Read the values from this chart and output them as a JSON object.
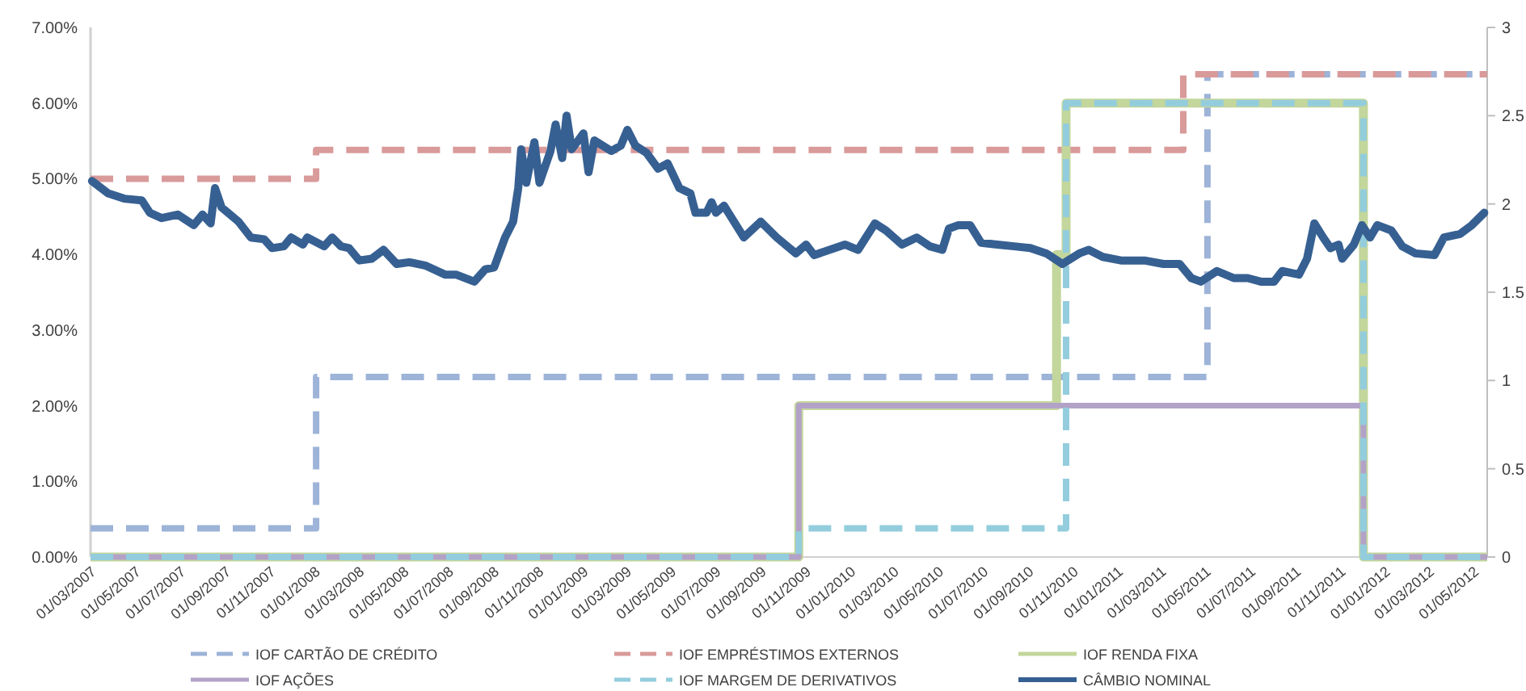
{
  "chart_data": {
    "type": "step",
    "xlim": [
      "2007-03-01",
      "2012-05-20"
    ],
    "xticks": [
      {
        "value": "2007-03-01",
        "label": "01/03/2007"
      },
      {
        "value": "2007-05-01",
        "label": "01/05/2007"
      },
      {
        "value": "2007-07-01",
        "label": "01/07/2007"
      },
      {
        "value": "2007-09-01",
        "label": "01/09/2007"
      },
      {
        "value": "2007-11-01",
        "label": "01/11/2007"
      },
      {
        "value": "2008-01-01",
        "label": "01/01/2008"
      },
      {
        "value": "2008-03-01",
        "label": "01/03/2008"
      },
      {
        "value": "2008-05-01",
        "label": "01/05/2008"
      },
      {
        "value": "2008-07-01",
        "label": "01/07/2008"
      },
      {
        "value": "2008-09-01",
        "label": "01/09/2008"
      },
      {
        "value": "2008-11-01",
        "label": "01/11/2008"
      },
      {
        "value": "2009-01-01",
        "label": "01/01/2009"
      },
      {
        "value": "2009-03-01",
        "label": "01/03/2009"
      },
      {
        "value": "2009-05-01",
        "label": "01/05/2009"
      },
      {
        "value": "2009-07-01",
        "label": "01/07/2009"
      },
      {
        "value": "2009-09-01",
        "label": "01/09/2009"
      },
      {
        "value": "2009-11-01",
        "label": "01/11/2009"
      },
      {
        "value": "2010-01-01",
        "label": "01/01/2010"
      },
      {
        "value": "2010-03-01",
        "label": "01/03/2010"
      },
      {
        "value": "2010-05-01",
        "label": "01/05/2010"
      },
      {
        "value": "2010-07-01",
        "label": "01/07/2010"
      },
      {
        "value": "2010-09-01",
        "label": "01/09/2010"
      },
      {
        "value": "2010-11-01",
        "label": "01/11/2010"
      },
      {
        "value": "2011-01-01",
        "label": "01/01/2011"
      },
      {
        "value": "2011-03-01",
        "label": "01/03/2011"
      },
      {
        "value": "2011-05-01",
        "label": "01/05/2011"
      },
      {
        "value": "2011-07-01",
        "label": "01/07/2011"
      },
      {
        "value": "2011-09-01",
        "label": "01/09/2011"
      },
      {
        "value": "2011-11-01",
        "label": "01/11/2011"
      },
      {
        "value": "2012-01-01",
        "label": "01/01/2012"
      },
      {
        "value": "2012-03-01",
        "label": "01/03/2012"
      },
      {
        "value": "2012-05-01",
        "label": "01/05/2012"
      }
    ],
    "ylim": [
      0,
      7
    ],
    "yticks": [
      {
        "value": 0,
        "label": "0.00%"
      },
      {
        "value": 1,
        "label": "1.00%"
      },
      {
        "value": 2,
        "label": "2.00%"
      },
      {
        "value": 3,
        "label": "3.00%"
      },
      {
        "value": 4,
        "label": "4.00%"
      },
      {
        "value": 5,
        "label": "5.00%"
      },
      {
        "value": 6,
        "label": "6.00%"
      },
      {
        "value": 7,
        "label": "7.00%"
      }
    ],
    "y2lim": [
      0,
      3
    ],
    "y2ticks": [
      0,
      0.5,
      1,
      1.5,
      2,
      2.5,
      3
    ],
    "grid": false,
    "legend": "bottom",
    "series": [
      {
        "name": "IOF CARTÃO DE CRÉDITO",
        "color": "#9db3d8",
        "line_style": "dashed",
        "x": [
          "2007-03-01",
          "2008-01-03",
          "2011-05-04",
          "2012-05-20"
        ],
        "values": [
          0.38,
          2.38,
          6.38,
          6.38
        ]
      },
      {
        "name": "IOF EMPRÉSTIMOS EXTERNOS",
        "color": "#d99a9a",
        "line_style": "dashed",
        "x": [
          "2007-03-01",
          "2008-01-03",
          "2011-04-01",
          "2012-05-20"
        ],
        "values": [
          5,
          5.38,
          6.38,
          6.38
        ]
      },
      {
        "name": "IOF RENDA FIXA",
        "color": "#c3d69b",
        "line_style": "solid",
        "x": [
          "2007-03-01",
          "2009-10-23",
          "2010-10-10",
          "2010-10-23",
          "2011-12-03",
          "2012-05-20"
        ],
        "values": [
          0,
          2,
          4,
          6,
          0,
          0
        ]
      },
      {
        "name": "IOF AÇÕES",
        "color": "#b3a2c7",
        "line_style": "solid",
        "x": [
          "2007-03-01",
          "2009-10-23",
          "2011-12-03",
          "2012-05-20"
        ],
        "values": [
          0,
          2,
          0,
          0
        ]
      },
      {
        "name": "IOF MARGEM DE DERIVATIVOS",
        "color": "#93cddd",
        "line_style": "dashed",
        "x": [
          "2007-03-01",
          "2009-10-23",
          "2010-10-23",
          "2011-12-03",
          "2012-05-20"
        ],
        "values": [
          0,
          0.38,
          6,
          0,
          0
        ]
      },
      {
        "name": "CÂMBIO NOMINAL",
        "type": "line",
        "axis": "y2",
        "color": "#376092",
        "line_style": "solid",
        "x": [
          "2007-03-03",
          "2007-03-25",
          "2007-04-16",
          "2007-05-10",
          "2007-05-21",
          "2007-06-06",
          "2007-06-28",
          "2007-07-20",
          "2007-08-01",
          "2007-08-12",
          "2007-08-18",
          "2007-08-27",
          "2007-09-19",
          "2007-10-06",
          "2007-10-24",
          "2007-11-04",
          "2007-11-20",
          "2007-11-30",
          "2007-12-16",
          "2007-12-22",
          "2008-01-14",
          "2008-01-25",
          "2008-02-06",
          "2008-02-17",
          "2008-03-02",
          "2008-03-19",
          "2008-04-04",
          "2008-04-22",
          "2008-05-09",
          "2008-06-01",
          "2008-06-27",
          "2008-07-12",
          "2008-08-06",
          "2008-08-21",
          "2008-09-02",
          "2008-09-17",
          "2008-09-28",
          "2008-10-05",
          "2008-10-09",
          "2008-10-16",
          "2008-10-27",
          "2008-11-03",
          "2008-11-18",
          "2008-11-25",
          "2008-12-04",
          "2008-12-10",
          "2008-12-17",
          "2009-01-02",
          "2009-01-09",
          "2009-01-17",
          "2009-02-09",
          "2009-02-22",
          "2009-03-03",
          "2009-03-14",
          "2009-03-29",
          "2009-04-14",
          "2009-04-27",
          "2009-05-13",
          "2009-05-28",
          "2009-06-04",
          "2009-06-19",
          "2009-06-26",
          "2009-07-02",
          "2009-07-13",
          "2009-07-28",
          "2009-08-09",
          "2009-09-01",
          "2009-09-23",
          "2009-10-19",
          "2009-11-02",
          "2009-11-13",
          "2009-12-25",
          "2010-01-12",
          "2010-02-04",
          "2010-02-19",
          "2010-03-13",
          "2010-04-02",
          "2010-04-20",
          "2010-05-07",
          "2010-05-16",
          "2010-05-29",
          "2010-06-14",
          "2010-06-29",
          "2010-07-21",
          "2010-08-13",
          "2010-09-04",
          "2010-09-26",
          "2010-10-18",
          "2010-11-10",
          "2010-11-23",
          "2010-12-12",
          "2011-01-06",
          "2011-02-07",
          "2011-03-05",
          "2011-03-27",
          "2011-04-12",
          "2011-04-25",
          "2011-05-17",
          "2011-06-09",
          "2011-06-28",
          "2011-07-16",
          "2011-08-03",
          "2011-08-14",
          "2011-09-06",
          "2011-09-17",
          "2011-09-27",
          "2011-10-09",
          "2011-10-19",
          "2011-10-30",
          "2011-11-04",
          "2011-11-20",
          "2011-12-01",
          "2011-12-12",
          "2011-12-22",
          "2012-01-10",
          "2012-01-25",
          "2012-02-12",
          "2012-03-09",
          "2012-03-22",
          "2012-04-13",
          "2012-04-29",
          "2012-05-16"
        ],
        "values": [
          2.13,
          2.06,
          2.03,
          2.02,
          1.95,
          1.92,
          1.94,
          1.88,
          1.94,
          1.89,
          2.09,
          1.98,
          1.9,
          1.81,
          1.8,
          1.75,
          1.76,
          1.81,
          1.77,
          1.81,
          1.76,
          1.81,
          1.76,
          1.75,
          1.68,
          1.69,
          1.74,
          1.66,
          1.67,
          1.65,
          1.6,
          1.6,
          1.56,
          1.63,
          1.64,
          1.81,
          1.9,
          2.09,
          2.31,
          2.12,
          2.35,
          2.12,
          2.3,
          2.45,
          2.26,
          2.5,
          2.31,
          2.4,
          2.18,
          2.36,
          2.3,
          2.33,
          2.42,
          2.33,
          2.29,
          2.2,
          2.23,
          2.09,
          2.06,
          1.95,
          1.95,
          2.01,
          1.95,
          1.99,
          1.89,
          1.81,
          1.9,
          1.81,
          1.72,
          1.77,
          1.71,
          1.77,
          1.74,
          1.89,
          1.85,
          1.77,
          1.81,
          1.76,
          1.74,
          1.86,
          1.88,
          1.88,
          1.78,
          1.77,
          1.76,
          1.75,
          1.72,
          1.66,
          1.72,
          1.74,
          1.7,
          1.68,
          1.68,
          1.66,
          1.66,
          1.58,
          1.56,
          1.62,
          1.58,
          1.58,
          1.56,
          1.56,
          1.62,
          1.6,
          1.69,
          1.89,
          1.81,
          1.75,
          1.77,
          1.69,
          1.77,
          1.88,
          1.81,
          1.88,
          1.85,
          1.76,
          1.72,
          1.71,
          1.81,
          1.83,
          1.88,
          1.95
        ]
      }
    ]
  }
}
